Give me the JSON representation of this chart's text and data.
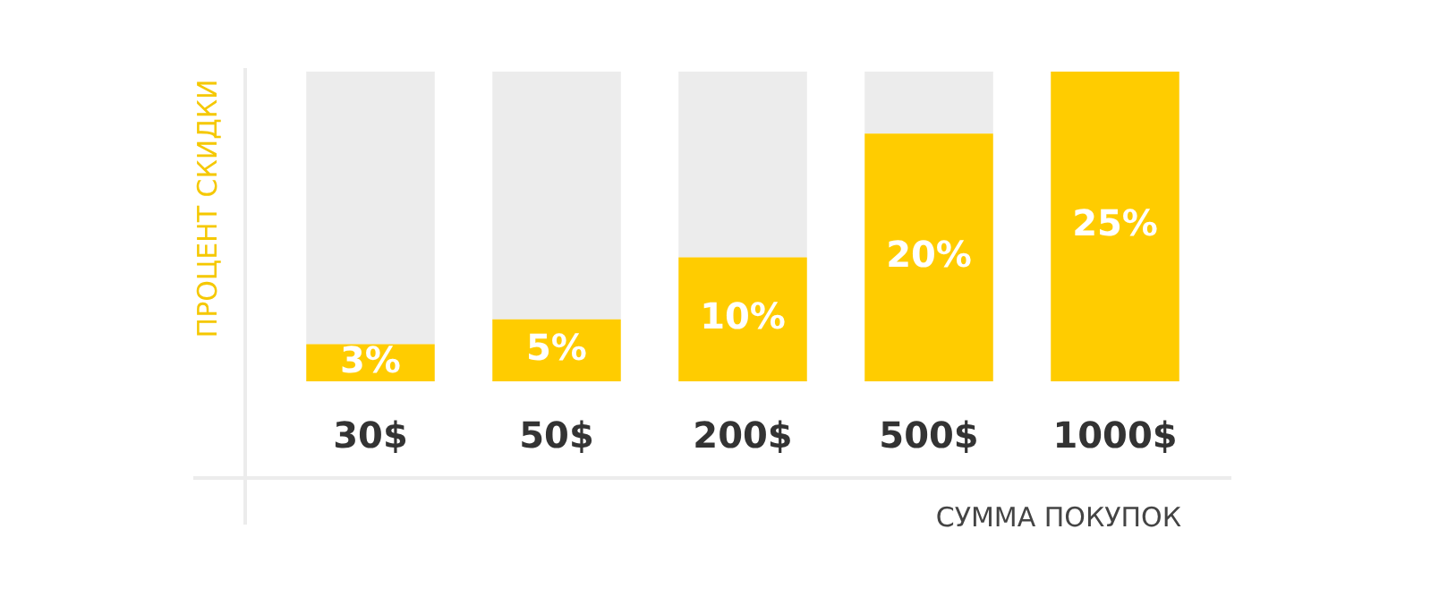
{
  "chart_data": {
    "type": "bar",
    "xlabel": "СУММА ПОКУПОК",
    "ylabel": "ПРОЦЕНТ СКИДКИ",
    "categories": [
      "30$",
      "50$",
      "200$",
      "500$",
      "1000$"
    ],
    "stacked": true,
    "ylim": [
      0,
      25
    ],
    "tick_labels": "x",
    "grid": false,
    "legend": false,
    "series": [
      {
        "color": "#ffcc00",
        "values": [
          3,
          5,
          10,
          20,
          25
        ],
        "value_labels": [
          "3%",
          "5%",
          "10%",
          "20%",
          "25%"
        ]
      },
      {
        "color": "#ececec",
        "values": [
          22,
          20,
          15,
          5,
          0
        ]
      }
    ]
  }
}
